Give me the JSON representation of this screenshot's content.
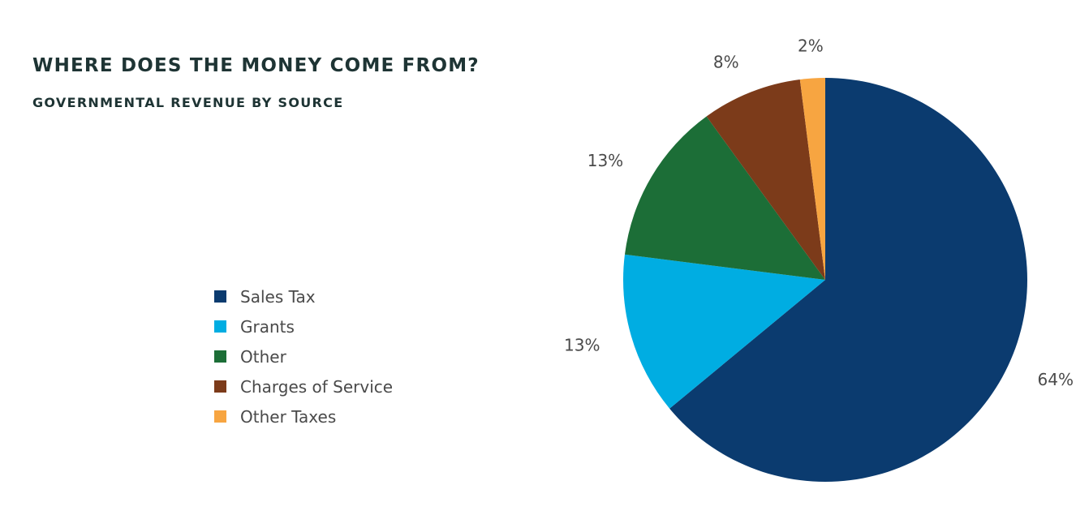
{
  "chart_data": {
    "type": "pie",
    "title": "WHERE DOES THE MONEY COME FROM?",
    "subtitle": "GOVERNMENTAL REVENUE BY SOURCE",
    "legend_position": "left",
    "start_angle_deg": 0,
    "direction": "clockwise",
    "slices": [
      {
        "name": "Sales Tax",
        "value": 64,
        "label": "64%",
        "color": "#0b3b6f"
      },
      {
        "name": "Grants",
        "value": 13,
        "label": "13%",
        "color": "#00ade2"
      },
      {
        "name": "Other",
        "value": 13,
        "label": "13%",
        "color": "#1c6e37"
      },
      {
        "name": "Charges of Service",
        "value": 8,
        "label": "8%",
        "color": "#7c3b1a"
      },
      {
        "name": "Other Taxes",
        "value": 2,
        "label": "2%",
        "color": "#f7a541"
      }
    ]
  }
}
